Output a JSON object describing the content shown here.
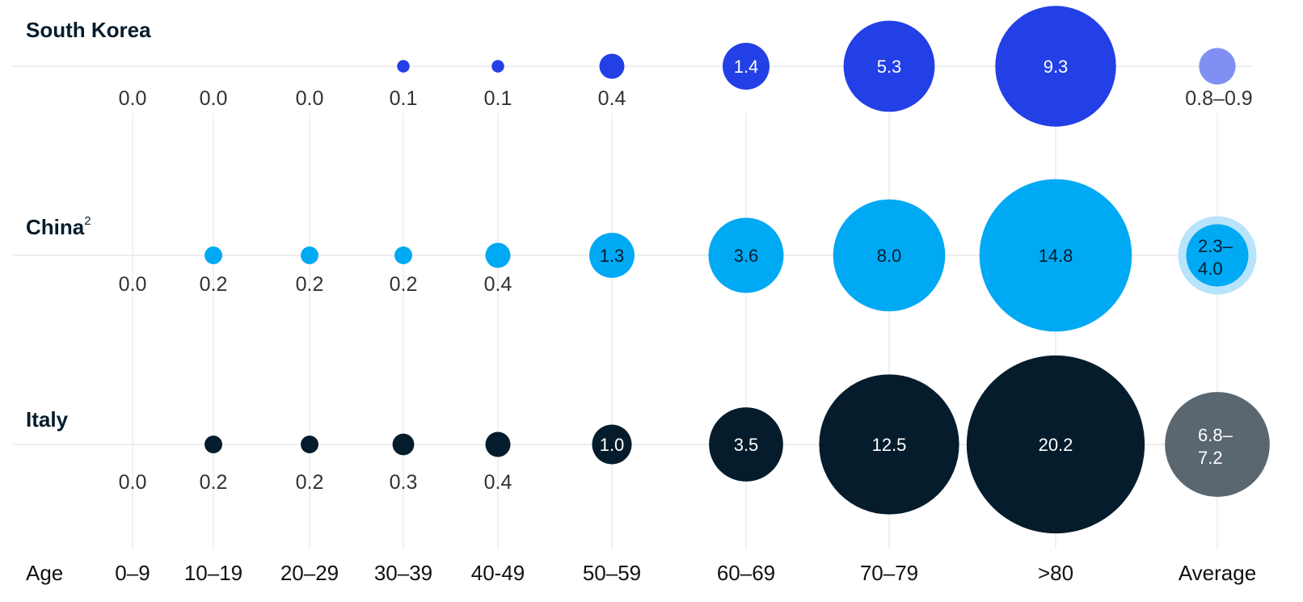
{
  "chart_data": {
    "type": "bubble",
    "categories": [
      "0–9",
      "10–19",
      "20–29",
      "30–39",
      "40-49",
      "50–59",
      "60–69",
      "70–79",
      ">80"
    ],
    "average_label": "Average",
    "axis_label": "Age",
    "series": [
      {
        "name": "South Korea",
        "superscript": "",
        "color": "#2240e6",
        "average_color": "#8090f2",
        "label_color": "#ffffff",
        "values": [
          0.0,
          0.0,
          0.0,
          0.1,
          0.1,
          0.4,
          1.4,
          5.3,
          9.3
        ],
        "labels": [
          "0.0",
          "0.0",
          "0.0",
          "0.1",
          "0.1",
          "0.4",
          "1.4",
          "5.3",
          "9.3"
        ],
        "average": "0.8–0.9",
        "average_mid": 0.85
      },
      {
        "name": "China",
        "superscript": "2",
        "color": "#00a9f4",
        "average_color": "#8fd7f9",
        "label_color": "#051c2c",
        "values": [
          0.0,
          0.2,
          0.2,
          0.2,
          0.4,
          1.3,
          3.6,
          8.0,
          14.8
        ],
        "labels": [
          "0.0",
          "0.2",
          "0.2",
          "0.2",
          "0.4",
          "1.3",
          "3.6",
          "8.0",
          "14.8"
        ],
        "average": "2.3–4.0",
        "average_lines": [
          "2.3–",
          "4.0"
        ],
        "average_mid": 3.15
      },
      {
        "name": "Italy",
        "superscript": "",
        "color": "#051c2c",
        "average_color": "#5a6670",
        "label_color": "#ffffff",
        "values": [
          0.0,
          0.2,
          0.2,
          0.3,
          0.4,
          1.0,
          3.5,
          12.5,
          20.2
        ],
        "labels": [
          "0.0",
          "0.2",
          "0.2",
          "0.3",
          "0.4",
          "1.0",
          "3.5",
          "12.5",
          "20.2"
        ],
        "average": "6.8–7.2",
        "average_lines": [
          "6.8–",
          "7.2"
        ],
        "average_mid": 7.0
      }
    ]
  }
}
